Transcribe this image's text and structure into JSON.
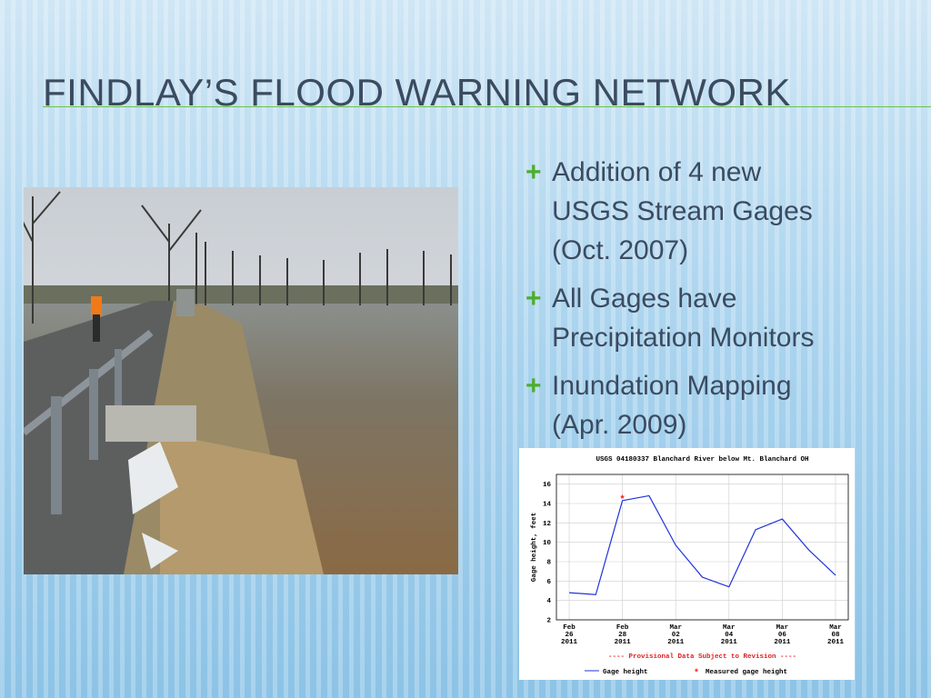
{
  "title": "Findlay’s Flood Warning Network",
  "bullets": [
    "Addition of 4 new USGS Stream Gages (Oct. 2007)",
    "All Gages have Precipitation Monitors",
    "Inundation Mapping (Apr. 2009)"
  ],
  "bullet_marker": "+",
  "chart_data": {
    "type": "line",
    "title": "USGS 04180337 Blanchard River below Mt. Blanchard OH",
    "y_label": "Gage height, feet",
    "note": "---- Provisional Data Subject to Revision ----",
    "x": [
      "2011-02-26",
      "2011-02-27",
      "2011-02-28",
      "2011-03-01",
      "2011-03-02",
      "2011-03-03",
      "2011-03-04",
      "2011-03-05",
      "2011-03-06",
      "2011-03-07",
      "2011-03-08"
    ],
    "series": [
      {
        "name": "Gage height",
        "color": "#2233dd",
        "values": [
          4.8,
          4.6,
          14.3,
          14.8,
          9.7,
          6.4,
          5.4,
          11.3,
          12.4,
          9.2,
          6.6
        ]
      },
      {
        "name": "Measured gage height",
        "color": "#ee2222",
        "marker": "*",
        "values": [
          null,
          null,
          14.5,
          null,
          null,
          null,
          null,
          null,
          null,
          null,
          null
        ]
      }
    ],
    "xlim": [
      "2011-02-26",
      "2011-03-08"
    ],
    "xticks": [
      {
        "value": "2011-02-26",
        "label": "Feb 26 2011"
      },
      {
        "value": "2011-02-28",
        "label": "Feb 28 2011"
      },
      {
        "value": "2011-03-02",
        "label": "Mar 02 2011"
      },
      {
        "value": "2011-03-04",
        "label": "Mar 04 2011"
      },
      {
        "value": "2011-03-06",
        "label": "Mar 06 2011"
      },
      {
        "value": "2011-03-08",
        "label": "Mar 08 2011"
      }
    ],
    "ylim": [
      2,
      17
    ],
    "yticks": [
      2,
      4,
      6,
      8,
      10,
      12,
      14,
      16
    ],
    "grid": true
  }
}
